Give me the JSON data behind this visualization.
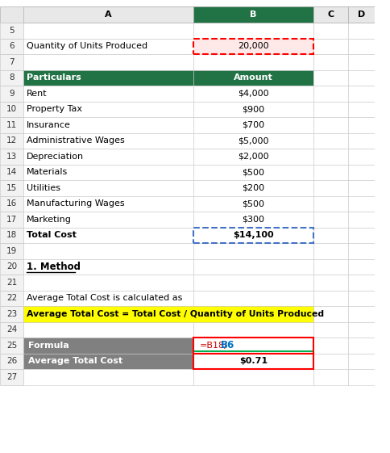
{
  "rows": [
    {
      "row": 5,
      "col_a": "",
      "col_b": "",
      "style": "empty"
    },
    {
      "row": 6,
      "col_a": "Quantity of Units Produced",
      "col_b": "20,000",
      "style": "quantity"
    },
    {
      "row": 7,
      "col_a": "",
      "col_b": "",
      "style": "empty"
    },
    {
      "row": 8,
      "col_a": "Particulars",
      "col_b": "Amount",
      "style": "header"
    },
    {
      "row": 9,
      "col_a": "Rent",
      "col_b": "$4,000",
      "style": "data"
    },
    {
      "row": 10,
      "col_a": "Property Tax",
      "col_b": "$900",
      "style": "data"
    },
    {
      "row": 11,
      "col_a": "Insurance",
      "col_b": "$700",
      "style": "data"
    },
    {
      "row": 12,
      "col_a": "Administrative Wages",
      "col_b": "$5,000",
      "style": "data"
    },
    {
      "row": 13,
      "col_a": "Depreciation",
      "col_b": "$2,000",
      "style": "data"
    },
    {
      "row": 14,
      "col_a": "Materials",
      "col_b": "$500",
      "style": "data"
    },
    {
      "row": 15,
      "col_a": "Utilities",
      "col_b": "$200",
      "style": "data"
    },
    {
      "row": 16,
      "col_a": "Manufacturing Wages",
      "col_b": "$500",
      "style": "data"
    },
    {
      "row": 17,
      "col_a": "Marketing",
      "col_b": "$300",
      "style": "data"
    },
    {
      "row": 18,
      "col_a": "Total Cost",
      "col_b": "$14,100",
      "style": "total"
    },
    {
      "row": 19,
      "col_a": "",
      "col_b": "",
      "style": "empty"
    },
    {
      "row": 20,
      "col_a": "1. Method",
      "col_b": "",
      "style": "method"
    },
    {
      "row": 21,
      "col_a": "",
      "col_b": "",
      "style": "empty"
    },
    {
      "row": 22,
      "col_a": "Average Total Cost is calculated as",
      "col_b": "",
      "style": "text"
    },
    {
      "row": 23,
      "col_a": "Average Total Cost = Total Cost / Quantity of Units Produced",
      "col_b": "",
      "style": "formula_yellow"
    },
    {
      "row": 24,
      "col_a": "",
      "col_b": "",
      "style": "empty"
    },
    {
      "row": 25,
      "col_a": "Formula",
      "col_b": "=B18/B6",
      "style": "formula_row"
    },
    {
      "row": 26,
      "col_a": "Average Total Cost",
      "col_b": "$0.71",
      "style": "result"
    },
    {
      "row": 27,
      "col_a": "",
      "col_b": "",
      "style": "empty"
    }
  ],
  "header_bg": "#217346",
  "header_text": "#ffffff",
  "formula_yellow_bg": "#ffff00",
  "formula_row_bg": "#808080",
  "grid_color": "#d0d0d0",
  "col_header_bg": "#e8e8e8",
  "row_header_bg": "#f2f2f2",
  "b_header_bg": "#217346",
  "b_header_text": "#ffffff",
  "quantity_bg": "#ffe8e8",
  "red_border": "#ff0000",
  "blue_border": "#4472c4",
  "green_underline": "#00b050",
  "formula_red": "#cc0000",
  "formula_blue": "#0070c0"
}
